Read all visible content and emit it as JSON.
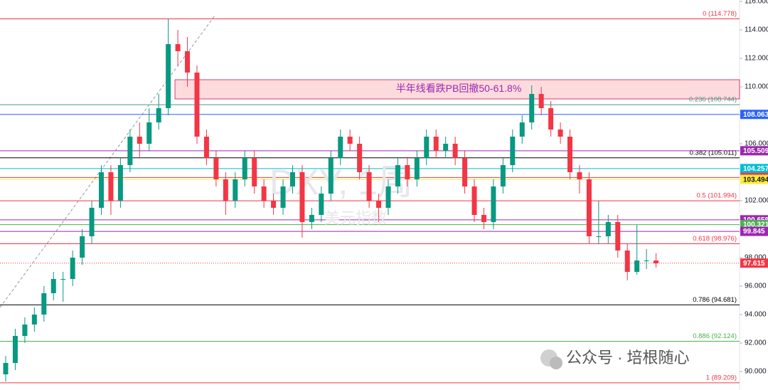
{
  "chart_data": {
    "type": "candlestick",
    "up_color": "#089981",
    "down_color": "#f23645",
    "open": [
      89.8,
      90.6,
      92.5,
      93.3,
      94,
      95.5,
      96.5,
      96.5,
      98,
      99.5,
      101.5,
      104,
      102,
      104.5,
      106.5,
      106,
      107.5,
      108.5,
      113,
      112.5,
      111,
      106.5,
      105,
      103.5,
      102,
      103.5,
      105,
      103,
      102,
      101.5,
      103,
      104,
      100.5,
      101,
      102.5,
      105,
      106.5,
      106,
      104,
      102,
      101.5,
      103,
      104.5,
      103.5,
      105,
      106.5,
      105.5,
      106,
      105,
      103,
      101,
      100.5,
      103,
      104.5,
      106.5,
      107.5,
      109.5,
      108.5,
      107,
      106.5,
      104,
      103.5,
      99.5,
      99.5,
      100.5,
      98.5,
      97,
      97.8,
      97.8
    ],
    "high": [
      91.1,
      93.0,
      93.8,
      94.5,
      96.0,
      97.0,
      97.0,
      98.5,
      100.0,
      102.0,
      104.5,
      104.5,
      105.0,
      107.0,
      107.5,
      108.5,
      109.5,
      114.8,
      114.0,
      113.5,
      111.5,
      107.0,
      105.5,
      104.0,
      104.0,
      105.5,
      105.5,
      103.5,
      102.5,
      103.5,
      104.5,
      104.5,
      101.5,
      103.0,
      105.5,
      107.0,
      107.0,
      106.5,
      104.5,
      102.5,
      103.5,
      105.0,
      105.0,
      105.5,
      107.0,
      107.0,
      106.5,
      106.5,
      105.5,
      103.5,
      101.5,
      103.5,
      105.0,
      107.0,
      108.0,
      110.1,
      110.0,
      109.0,
      107.5,
      107.0,
      104.5,
      104.0,
      102.0,
      101.0,
      101.0,
      99.0,
      100.3,
      98.6,
      98.3
    ],
    "low": [
      89.3,
      90.1,
      92.0,
      92.8,
      93.5,
      95.0,
      94.9,
      96.0,
      97.5,
      99.0,
      101.0,
      101.0,
      101.5,
      104.0,
      105.0,
      105.5,
      107.0,
      108.0,
      111.5,
      110.0,
      106.0,
      104.5,
      103.0,
      101.0,
      101.5,
      103.0,
      102.5,
      101.5,
      101.0,
      101.0,
      102.5,
      99.4,
      100.0,
      100.5,
      102.0,
      104.5,
      105.5,
      103.5,
      101.5,
      100.5,
      101.0,
      102.5,
      103.0,
      103.0,
      104.5,
      105.0,
      105.0,
      104.5,
      102.5,
      100.5,
      100.0,
      100.0,
      102.5,
      104.0,
      106.0,
      107.0,
      108.0,
      106.5,
      106.0,
      103.5,
      102.5,
      99.0,
      99.0,
      99.0,
      98.0,
      96.4,
      96.8,
      97.2,
      97.3
    ],
    "close": [
      90.6,
      92.5,
      93.3,
      94,
      95.5,
      96.5,
      96.5,
      98,
      99.5,
      101.5,
      104,
      102,
      104.5,
      106.5,
      106,
      107.5,
      108.5,
      113,
      112.5,
      111,
      106.5,
      105,
      103.5,
      102,
      103.5,
      105,
      103,
      102,
      101.5,
      103,
      104,
      100.5,
      101,
      102.5,
      105,
      106.5,
      106,
      104,
      102,
      101.5,
      103,
      104.5,
      103.5,
      105,
      106.5,
      105.5,
      106,
      105,
      103,
      101,
      100.5,
      103,
      104.5,
      106.5,
      107.5,
      109.5,
      108.5,
      107,
      106.5,
      104,
      103.5,
      99.5,
      99.5,
      100.5,
      98.5,
      97,
      97.8,
      97.8,
      97.6
    ],
    "ylim": [
      88.7,
      116.1
    ],
    "yticks": [
      {
        "value": 90,
        "label": "90.000"
      },
      {
        "value": 92,
        "label": "92.000"
      },
      {
        "value": 94,
        "label": "94.000"
      },
      {
        "value": 96,
        "label": "96.000"
      },
      {
        "value": 98,
        "label": "98.000"
      },
      {
        "value": 100,
        "label": "100.000"
      },
      {
        "value": 102,
        "label": "102.000"
      },
      {
        "value": 104,
        "label": "104.000"
      },
      {
        "value": 106,
        "label": "106.000"
      },
      {
        "value": 108,
        "label": "108.000"
      },
      {
        "value": 110,
        "label": "110.000"
      },
      {
        "value": 112,
        "label": "112.000"
      },
      {
        "value": 114,
        "label": "114.000"
      },
      {
        "value": 116,
        "label": "116.000"
      }
    ],
    "fib_levels": [
      {
        "price": 114.778,
        "label": "0 (114.778)",
        "color": "#f23645"
      },
      {
        "price": 108.744,
        "label": "0.236 (108.744)",
        "color": "#4e9a83"
      },
      {
        "price": 105.011,
        "label": "0.382 (105.011)",
        "color": "#000000"
      },
      {
        "price": 101.994,
        "label": "0.5 (101.994)",
        "color": "#f23645"
      },
      {
        "price": 98.976,
        "label": "0.618 (98.976)",
        "color": "#f23645"
      },
      {
        "price": 94.681,
        "label": "0.786 (94.681)",
        "color": "#000000"
      },
      {
        "price": 92.124,
        "label": "0.886 (92.124)",
        "color": "#4caf50"
      },
      {
        "price": 89.209,
        "label": "1 (89.209)",
        "color": "#f23645"
      }
    ],
    "price_lines": [
      {
        "price": 108.063,
        "color": "#2962ff"
      },
      {
        "price": 105.509,
        "color": "#9c27b0"
      },
      {
        "price": 104.257,
        "color": "#00bcd4"
      },
      {
        "price": 103.633,
        "color": "#f23645"
      },
      {
        "price": 103.494,
        "color": "#ffeb3b"
      },
      {
        "price": 100.659,
        "color": "#9c27b0"
      },
      {
        "price": 100.321,
        "color": "#4caf50"
      },
      {
        "price": 99.845,
        "color": "#9c27b0"
      },
      {
        "price": 97.615,
        "color": "#f23645",
        "dotted": true
      }
    ],
    "zone": {
      "text": "半年线看跌PB回撤50-61.8%",
      "top": 110.5,
      "bottom": 109.15
    },
    "watermark_title": "DXY, 1周",
    "watermark_subtitle": "美元指数",
    "footer_watermark": "公众号 · 培根随心"
  }
}
